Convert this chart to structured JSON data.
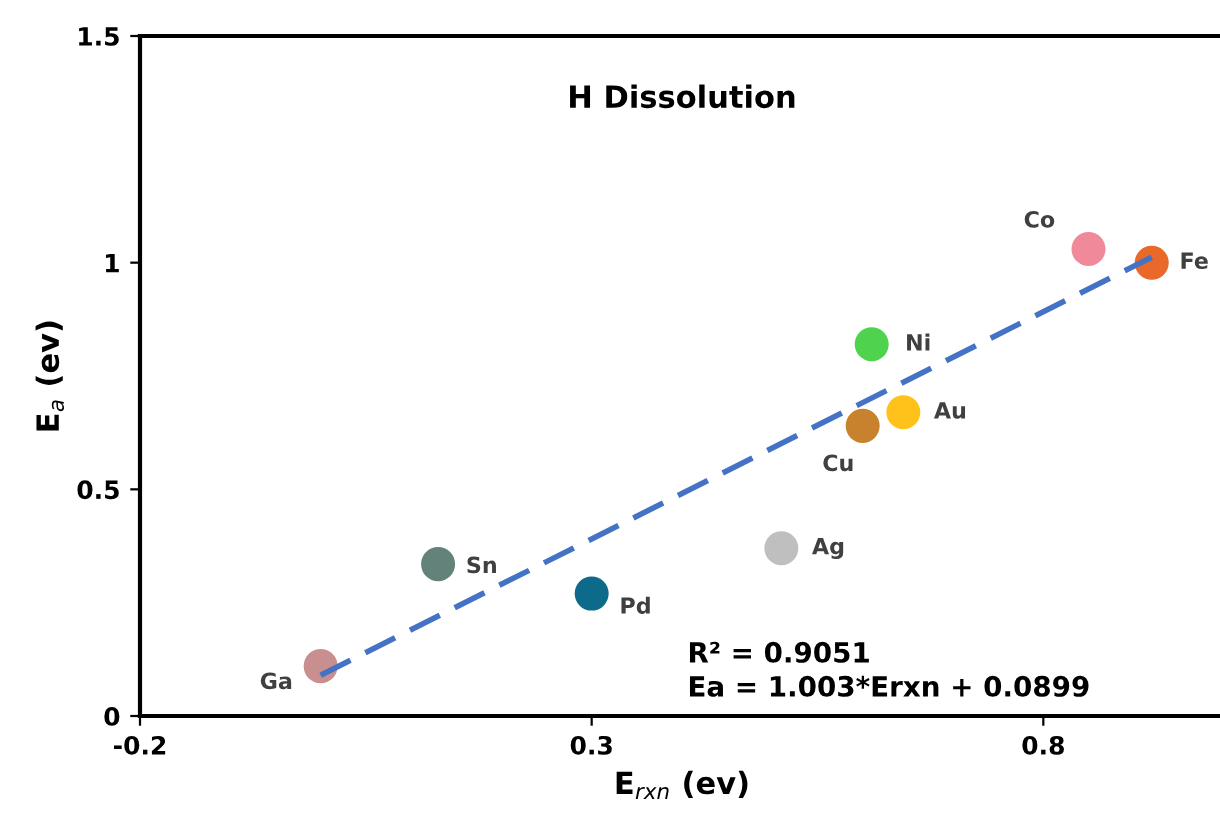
{
  "chart_data": {
    "type": "scatter",
    "title": "H Dissolution",
    "xlabel": "E$_{rxn}$ (ev)",
    "ylabel": "E$_{a}$ (ev)",
    "xlim": [
      -0.2,
      1.0
    ],
    "ylim": [
      0,
      1.5
    ],
    "xticks": [
      -0.2,
      0.3,
      0.8
    ],
    "yticks": [
      0,
      0.5,
      1,
      1.5
    ],
    "grid": false,
    "legend": false,
    "series": [
      {
        "marker": "circle",
        "x": [
          0.0,
          0.13,
          0.3,
          0.51,
          0.6,
          0.645,
          0.61,
          0.85,
          0.92
        ],
        "values": [
          0.11,
          0.335,
          0.27,
          0.37,
          0.64,
          0.67,
          0.82,
          1.03,
          1.0
        ],
        "colors": [
          "#c98f8f",
          "#62827a",
          "#0e6a8a",
          "#bfbfbf",
          "#c8822d",
          "#ffc21a",
          "#4fd34f",
          "#f08a9a",
          "#e8692a"
        ]
      },
      {
        "type": "line",
        "x": [
          0.0,
          0.92
        ],
        "values": [
          0.09,
          1.012
        ],
        "color": "#4472c4",
        "line_style": "dashed"
      }
    ],
    "annotations": [
      {
        "text": "Ga",
        "x": 0.0,
        "y": 0.11
      },
      {
        "text": "Sn",
        "x": 0.13,
        "y": 0.335
      },
      {
        "text": "Pd",
        "x": 0.3,
        "y": 0.27
      },
      {
        "text": "Ag",
        "x": 0.51,
        "y": 0.37
      },
      {
        "text": "Cu",
        "x": 0.6,
        "y": 0.64
      },
      {
        "text": "Au",
        "x": 0.645,
        "y": 0.67
      },
      {
        "text": "Ni",
        "x": 0.61,
        "y": 0.82
      },
      {
        "text": "Co",
        "x": 0.85,
        "y": 1.03
      },
      {
        "text": "Fe",
        "x": 0.92,
        "y": 1.0
      },
      "R² = 0.9051",
      "Ea = 1.003*Erxn + 0.0899"
    ]
  }
}
